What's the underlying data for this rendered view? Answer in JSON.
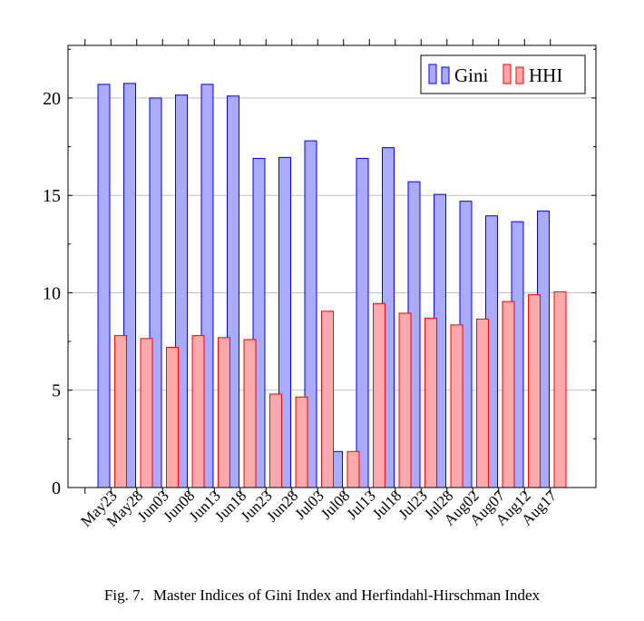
{
  "figure": {
    "label": "Fig. 7.",
    "caption": "Master Indices of Gini Index and Herfindahl-Hirschman Index"
  },
  "chart_data": {
    "type": "bar",
    "categories": [
      "May23",
      "May28",
      "Jun03",
      "Jun08",
      "Jun13",
      "Jun18",
      "Jun23",
      "Jun28",
      "Jul03",
      "Jul08",
      "Jul13",
      "Jul18",
      "Jul23",
      "Jul28",
      "Aug02",
      "Aug07",
      "Aug12",
      "Aug17"
    ],
    "series": [
      {
        "name": "Gini",
        "color": "#0000ff",
        "fill": "#aaaaff",
        "values": [
          20.7,
          20.75,
          20.0,
          20.15,
          20.7,
          20.1,
          16.9,
          16.95,
          17.8,
          1.85,
          16.9,
          17.45,
          15.7,
          15.05,
          14.7,
          13.95,
          13.65,
          14.2
        ]
      },
      {
        "name": "HHI",
        "color": "#ff0000",
        "fill": "#ffaaaa",
        "values": [
          7.8,
          7.65,
          7.2,
          7.8,
          7.7,
          7.6,
          4.8,
          4.65,
          9.05,
          1.85,
          9.45,
          8.95,
          8.7,
          8.35,
          8.65,
          9.55,
          9.9,
          10.05
        ]
      }
    ],
    "yticks": [
      0,
      5,
      10,
      15,
      20
    ],
    "ylim": [
      0,
      22.7
    ],
    "grid": "horizontal",
    "legend": "top-right",
    "title": "",
    "xlabel": "",
    "ylabel": ""
  }
}
